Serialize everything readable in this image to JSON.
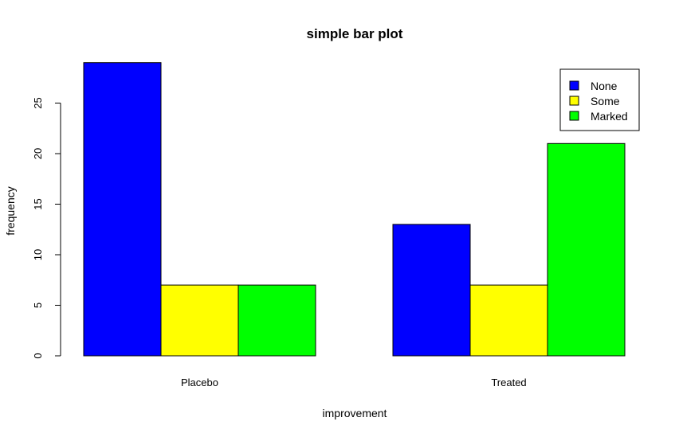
{
  "chart_data": {
    "type": "bar",
    "title": "simple bar plot",
    "xlabel": "improvement",
    "ylabel": "frequency",
    "categories": [
      "Placebo",
      "Treated"
    ],
    "series": [
      {
        "name": "None",
        "values": [
          29,
          13
        ],
        "color": "#0000ff"
      },
      {
        "name": "Some",
        "values": [
          7,
          7
        ],
        "color": "#ffff00"
      },
      {
        "name": "Marked",
        "values": [
          7,
          21
        ],
        "color": "#00ff00"
      }
    ],
    "yticks": [
      0,
      5,
      10,
      15,
      20,
      25
    ],
    "ylim": [
      0,
      29
    ],
    "grid": false,
    "legend_position": "top-right",
    "bar_mode": "grouped"
  }
}
